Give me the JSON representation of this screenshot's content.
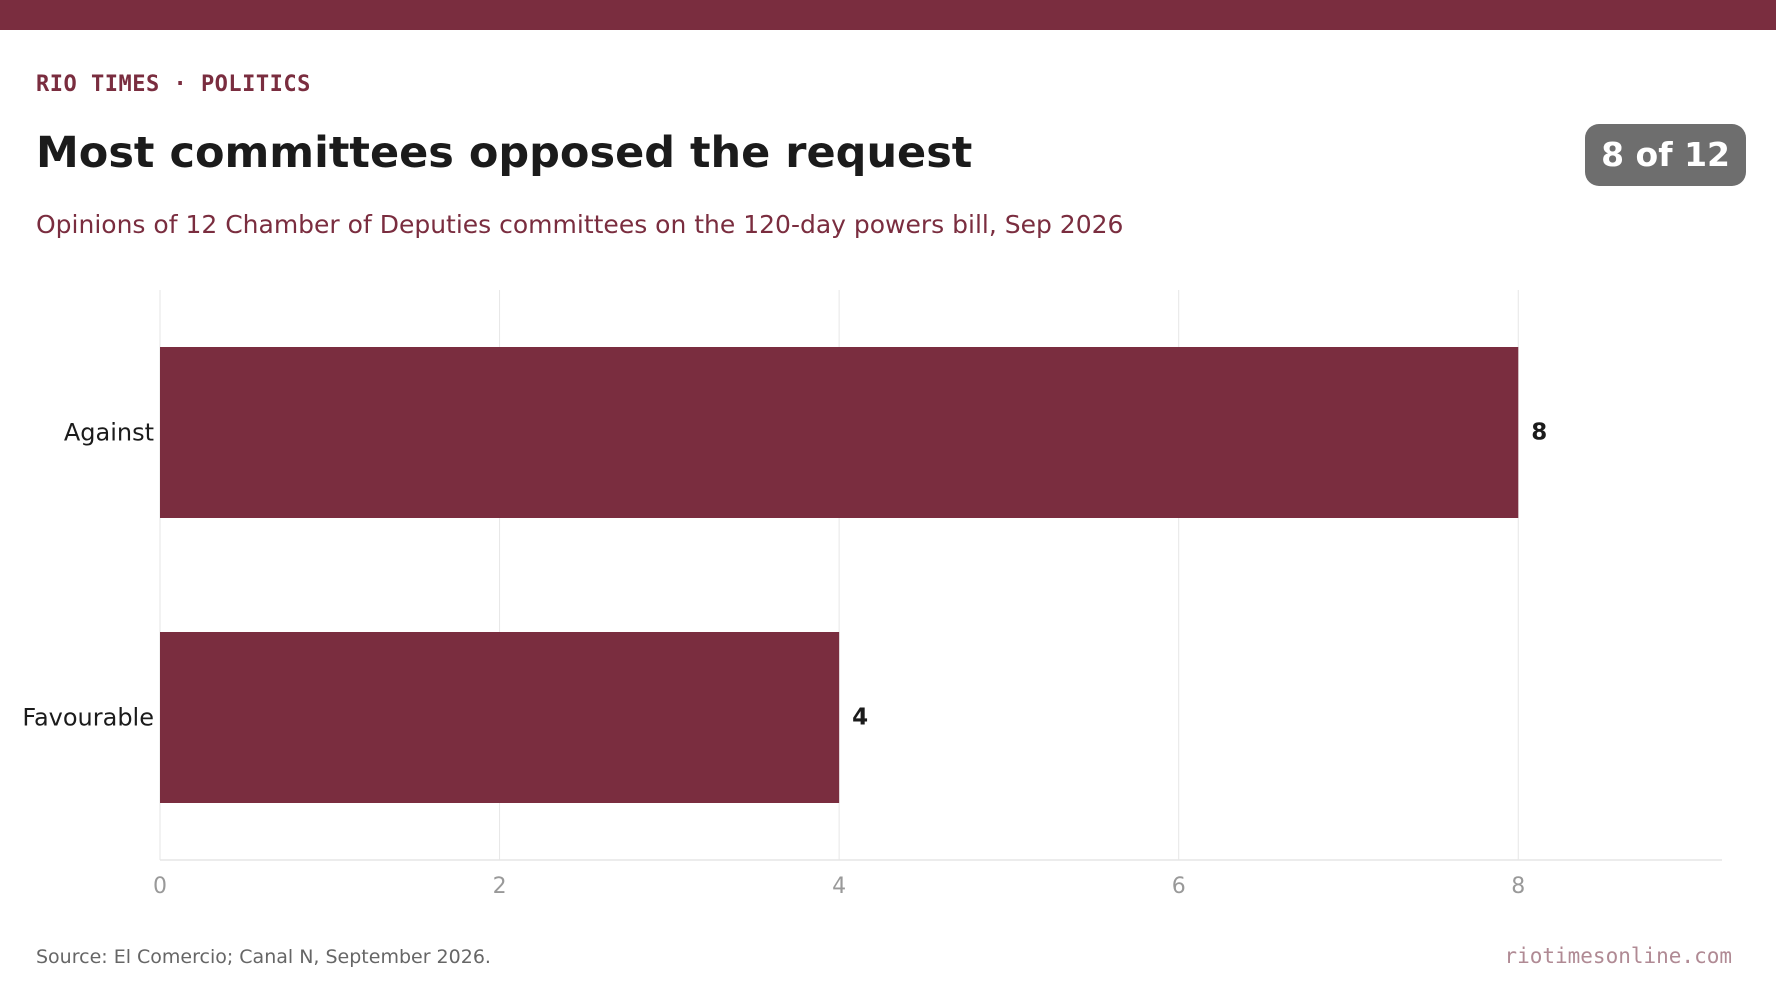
{
  "header": {
    "kicker": "RIO TIMES · POLITICS",
    "title": "Most committees opposed the request",
    "subtitle": "Opinions of 12 Chamber of Deputies committees on the 120-day powers bill, Sep 2026",
    "badge": "8 of 12"
  },
  "footer": {
    "source": "Source: El Comercio; Canal N, September 2026.",
    "site": "riotimesonline.com"
  },
  "colors": {
    "accent": "#7a2d3f",
    "bar": "#7a2d3f",
    "badge": "#6e6e6e",
    "grid": "#e6e6e6",
    "tick_label": "#999999",
    "category_label": "#1b1b1b",
    "value_label": "#1b1b1b"
  },
  "chart_data": {
    "type": "bar",
    "orientation": "horizontal",
    "categories": [
      "Against",
      "Favourable"
    ],
    "values": [
      8,
      4
    ],
    "data_labels": [
      "8",
      "4"
    ],
    "xlim": [
      0,
      9.2
    ],
    "xticks": [
      0,
      2,
      4,
      6,
      8
    ],
    "xtick_labels": [
      "0",
      "2",
      "4",
      "6",
      "8"
    ],
    "grid": "vertical",
    "legend": "none"
  }
}
